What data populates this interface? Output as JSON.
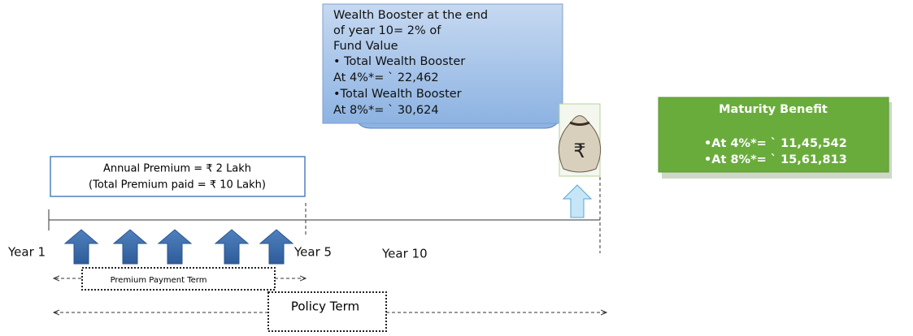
{
  "wealth_booster": {
    "lines": [
      "Wealth Booster at the end",
      "of year 10= 2% of",
      "Fund Value",
      "• Total Wealth Booster",
      "At 4%*= ` 22,462",
      "•Total Wealth Booster",
      "At 8%*= ` 30,624"
    ]
  },
  "maturity_benefit": {
    "title": "Maturity Benefit",
    "lines": [
      "•At 4%*= ` 11,45,542",
      "•At 8%*= ` 15,61,813"
    ]
  },
  "premium": {
    "lines": [
      "Annual Premium = ₹ 2 Lakh",
      "(Total Premium paid = ₹ 10 Lakh)"
    ]
  },
  "money_bag": {
    "symbol": "₹"
  },
  "timeline": {
    "labels": [
      "Year 1",
      "Year 5",
      "Year 10"
    ]
  },
  "terms": {
    "premium_payment_term": "Premium Payment Term",
    "policy_term": "Policy Term"
  }
}
